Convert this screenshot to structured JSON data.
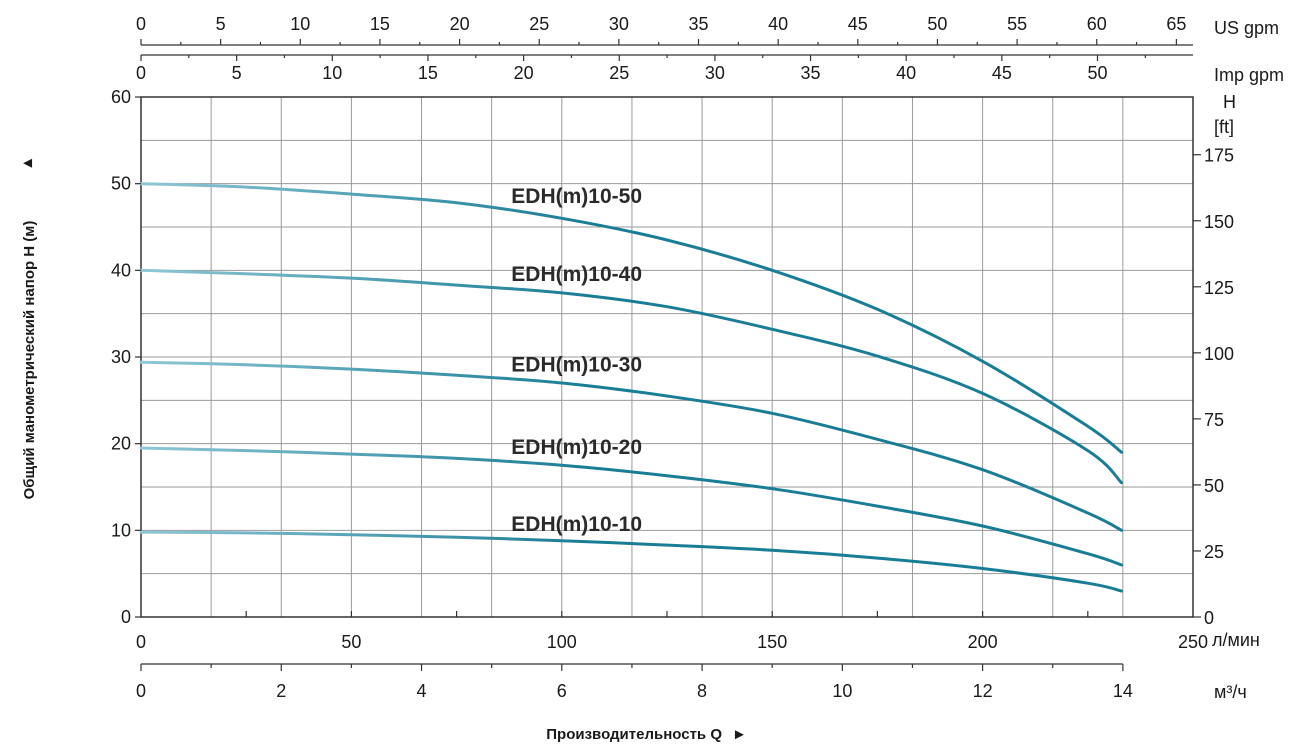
{
  "chart_data": {
    "type": "line",
    "x_label": "Производительность Q",
    "x_arrow": "►",
    "y_label": "Общий манометрический напор H (м)",
    "y_arrow": "►",
    "x_unit_lmin": "л/мин",
    "x_unit_m3h": "м³/ч",
    "x_unit_us": "US gpm",
    "x_unit_imp": "Imp gpm",
    "y_unit_ft_name": "H",
    "y_unit_ft": "[ft]",
    "xlim": [
      0,
      250
    ],
    "ylim": [
      0,
      60
    ],
    "grid": true,
    "curve_color": "#1a7d96",
    "ticks_lmin": [
      "0",
      "50",
      "100",
      "150",
      "200",
      "250"
    ],
    "ticks_m3h": [
      "0",
      "2",
      "4",
      "6",
      "8",
      "10",
      "12",
      "14"
    ],
    "ticks_us": [
      "0",
      "5",
      "10",
      "15",
      "20",
      "25",
      "30",
      "35",
      "40",
      "45",
      "50",
      "55",
      "60",
      "65"
    ],
    "ticks_imp": [
      "0",
      "5",
      "10",
      "15",
      "20",
      "25",
      "30",
      "35",
      "40",
      "45",
      "50"
    ],
    "ticks_m": [
      "0",
      "10",
      "20",
      "30",
      "40",
      "50",
      "60"
    ],
    "ticks_ft": [
      "0",
      "25",
      "50",
      "75",
      "100",
      "125",
      "150",
      "175"
    ],
    "series": [
      {
        "name": "EDH(m)10-50",
        "x": [
          0,
          25,
          50,
          75,
          100,
          125,
          150,
          175,
          200,
          225,
          233
        ],
        "y": [
          50,
          49.6,
          48.8,
          47.8,
          46,
          43.5,
          40,
          35.5,
          29.5,
          22,
          19
        ]
      },
      {
        "name": "EDH(m)10-40",
        "x": [
          0,
          25,
          50,
          75,
          100,
          125,
          150,
          175,
          200,
          225,
          233
        ],
        "y": [
          40,
          39.6,
          39.1,
          38.3,
          37.4,
          35.8,
          33.2,
          30.1,
          25.8,
          19.2,
          15.5
        ]
      },
      {
        "name": "EDH(m)10-30",
        "x": [
          0,
          25,
          50,
          75,
          100,
          125,
          150,
          175,
          200,
          225,
          233
        ],
        "y": [
          29.4,
          29.1,
          28.6,
          27.9,
          27,
          25.5,
          23.5,
          20.5,
          17,
          12,
          10
        ]
      },
      {
        "name": "EDH(m)10-20",
        "x": [
          0,
          25,
          50,
          75,
          100,
          125,
          150,
          175,
          200,
          225,
          233
        ],
        "y": [
          19.5,
          19.2,
          18.8,
          18.3,
          17.5,
          16.3,
          14.8,
          12.8,
          10.5,
          7.3,
          6
        ]
      },
      {
        "name": "EDH(m)10-10",
        "x": [
          0,
          25,
          50,
          75,
          100,
          125,
          150,
          175,
          200,
          225,
          233
        ],
        "y": [
          9.8,
          9.7,
          9.5,
          9.2,
          8.8,
          8.3,
          7.7,
          6.8,
          5.6,
          3.9,
          3
        ]
      }
    ]
  }
}
